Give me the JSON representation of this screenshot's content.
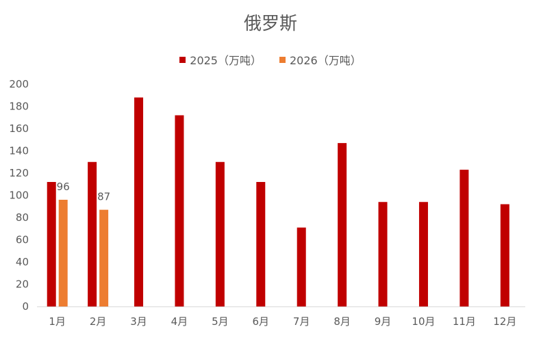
{
  "chart_data": {
    "type": "bar",
    "title": "俄罗斯",
    "categories": [
      "1月",
      "2月",
      "3月",
      "4月",
      "5月",
      "6月",
      "7月",
      "8月",
      "9月",
      "10月",
      "11月",
      "12月"
    ],
    "series": [
      {
        "name": "2025（万吨）",
        "color": "#C00000",
        "values": [
          112,
          130,
          188,
          172,
          130,
          112,
          71,
          147,
          94,
          94,
          123,
          92
        ]
      },
      {
        "name": "2026（万吨）",
        "color": "#ED7D31",
        "values": [
          96,
          87,
          null,
          null,
          null,
          null,
          null,
          null,
          null,
          null,
          null,
          null
        ],
        "data_labels": [
          "96",
          "87"
        ]
      }
    ],
    "ylim": [
      0,
      200
    ],
    "yticks": [
      "0",
      "20",
      "40",
      "60",
      "80",
      "100",
      "120",
      "140",
      "160",
      "180",
      "200"
    ],
    "grid": false,
    "legend_position": "top"
  }
}
